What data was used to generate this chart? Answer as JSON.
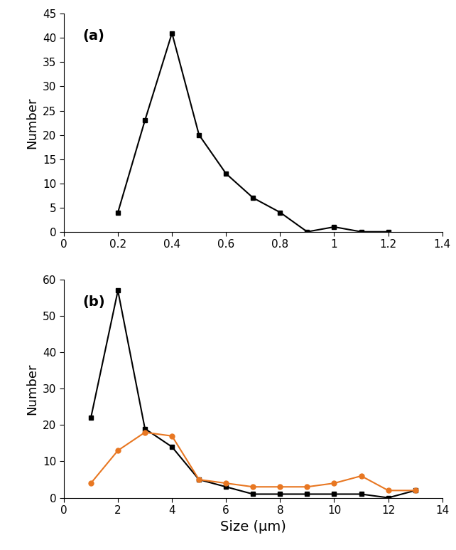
{
  "panel_a": {
    "x": [
      0.2,
      0.3,
      0.4,
      0.5,
      0.6,
      0.7,
      0.8,
      0.9,
      1.0,
      1.1,
      1.2
    ],
    "y": [
      4,
      23,
      41,
      20,
      12,
      7,
      4,
      0,
      1,
      0,
      0
    ],
    "color": "#000000",
    "marker": "s",
    "label": "(a)",
    "xlim": [
      0,
      1.4
    ],
    "ylim": [
      0,
      45
    ],
    "yticks": [
      0,
      5,
      10,
      15,
      20,
      25,
      30,
      35,
      40,
      45
    ],
    "xtick_vals": [
      0,
      0.2,
      0.4,
      0.6,
      0.8,
      1.0,
      1.2,
      1.4
    ],
    "xtick_labels": [
      "0",
      "0.2",
      "0.4",
      "0.6",
      "0.8",
      "1",
      "1.2",
      "1.4"
    ]
  },
  "panel_b_black": {
    "x": [
      1,
      2,
      3,
      4,
      5,
      6,
      7,
      8,
      9,
      10,
      11,
      12,
      13
    ],
    "y": [
      22,
      57,
      19,
      14,
      5,
      3,
      1,
      1,
      1,
      1,
      1,
      0,
      2
    ],
    "color": "#000000",
    "marker": "s"
  },
  "panel_b_orange": {
    "x": [
      1,
      2,
      3,
      4,
      5,
      6,
      7,
      8,
      9,
      10,
      11,
      12,
      13
    ],
    "y": [
      4,
      13,
      18,
      17,
      5,
      4,
      3,
      3,
      3,
      4,
      6,
      2,
      2
    ],
    "color": "#e87722",
    "marker": "o"
  },
  "panel_b": {
    "label": "(b)",
    "xlim": [
      0,
      14
    ],
    "ylim": [
      0,
      60
    ],
    "yticks": [
      0,
      10,
      20,
      30,
      40,
      50,
      60
    ],
    "xtick_vals": [
      0,
      2,
      4,
      6,
      8,
      10,
      12,
      14
    ],
    "xtick_labels": [
      "0",
      "2",
      "4",
      "6",
      "8",
      "10",
      "12",
      "14"
    ]
  },
  "ylabel": "Number",
  "xlabel": "Size (μm)",
  "background_color": "#ffffff",
  "line_width": 1.5,
  "marker_size": 5,
  "tick_fontsize": 11,
  "label_fontsize": 13,
  "xlabel_fontsize": 14,
  "panel_label_fontsize": 14
}
